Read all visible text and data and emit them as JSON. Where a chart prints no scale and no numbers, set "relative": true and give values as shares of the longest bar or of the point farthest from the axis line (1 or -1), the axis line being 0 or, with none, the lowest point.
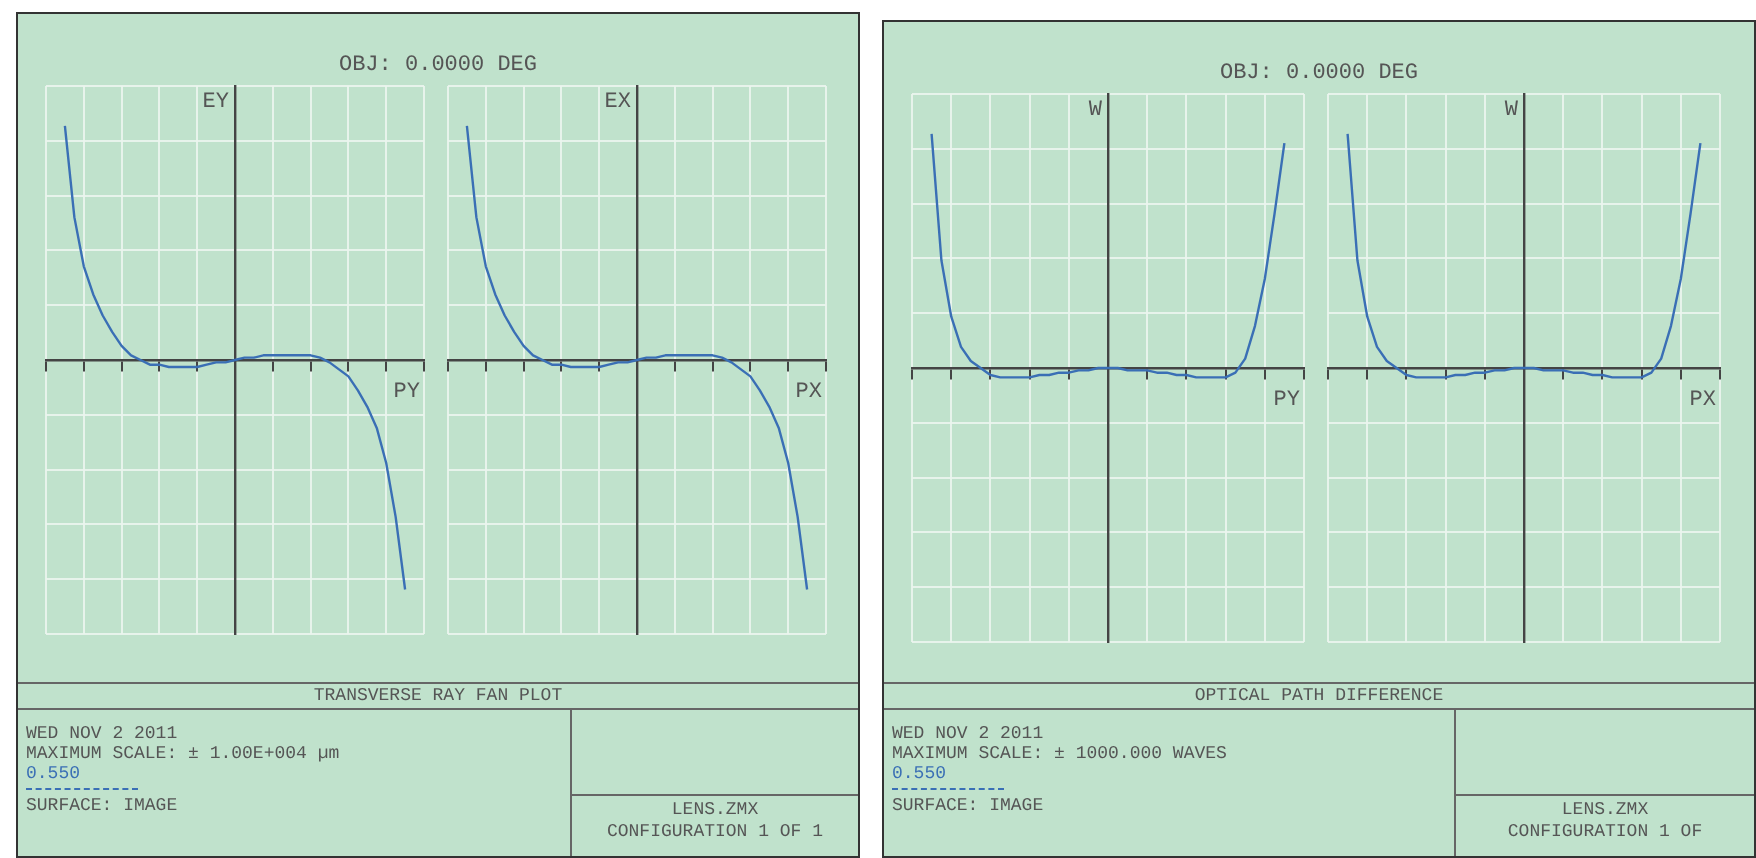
{
  "chart_data": [
    {
      "type": "line",
      "relative": true,
      "title": "OBJ: 0.0000 DEG",
      "ylabel": "EY",
      "xlabel": "PY",
      "grid": true,
      "legend": false,
      "marker": "none",
      "categories": [
        null,
        null,
        null,
        null,
        null,
        null,
        null,
        null,
        null,
        null,
        null,
        null,
        null,
        null,
        null,
        null,
        null,
        null,
        null,
        null,
        null,
        null,
        null,
        null,
        null,
        null,
        null,
        null,
        null,
        null,
        null,
        null,
        null,
        null,
        null,
        null,
        null,
        null,
        null,
        null,
        null
      ],
      "series": [
        {
          "name": "0.550",
          "color": "#3a6fb5",
          "values": [
            null,
            null,
            1,
            0.61,
            0.4,
            0.28,
            0.19,
            0.12,
            0.06,
            0.02,
            0,
            -0.02,
            -0.02,
            -0.03,
            -0.03,
            -0.03,
            -0.03,
            -0.02,
            -0.01,
            -0.01,
            0,
            0.01,
            0.01,
            0.02,
            0.02,
            0.02,
            0.02,
            0.02,
            0.02,
            0.01,
            -0.01,
            -0.04,
            -0.07,
            -0.13,
            -0.2,
            -0.29,
            -0.44,
            -0.67,
            -0.98,
            null,
            null
          ]
        }
      ],
      "annotations": [
        "TRANSVERSE RAY FAN PLOT",
        "WED NOV 2 2011",
        "MAXIMUM SCALE: ± 1.00E+004 µm",
        "SURFACE: IMAGE",
        "LENS.ZMX",
        "CONFIGURATION 1 OF 1"
      ]
    },
    {
      "type": "line",
      "relative": true,
      "ylabel": "EX",
      "xlabel": "PX",
      "grid": true,
      "legend": false,
      "marker": "none",
      "categories": [
        null,
        null,
        null,
        null,
        null,
        null,
        null,
        null,
        null,
        null,
        null,
        null,
        null,
        null,
        null,
        null,
        null,
        null,
        null,
        null,
        null,
        null,
        null,
        null,
        null,
        null,
        null,
        null,
        null,
        null,
        null,
        null,
        null,
        null,
        null,
        null,
        null,
        null,
        null,
        null,
        null
      ],
      "series": [
        {
          "color": "#3a6fb5",
          "values": [
            null,
            null,
            1,
            0.61,
            0.4,
            0.28,
            0.19,
            0.12,
            0.06,
            0.02,
            0,
            -0.02,
            -0.02,
            -0.03,
            -0.03,
            -0.03,
            -0.03,
            -0.02,
            -0.01,
            -0.01,
            0,
            0.01,
            0.01,
            0.02,
            0.02,
            0.02,
            0.02,
            0.02,
            0.02,
            0.01,
            -0.01,
            -0.04,
            -0.07,
            -0.13,
            -0.2,
            -0.29,
            -0.44,
            -0.67,
            -0.98,
            null,
            null
          ]
        }
      ]
    },
    {
      "type": "line",
      "relative": true,
      "title": "OBJ: 0.0000 DEG",
      "ylabel": "W",
      "xlabel": "PY",
      "grid": true,
      "legend": false,
      "marker": "none",
      "categories": [
        null,
        null,
        null,
        null,
        null,
        null,
        null,
        null,
        null,
        null,
        null,
        null,
        null,
        null,
        null,
        null,
        null,
        null,
        null,
        null,
        null,
        null,
        null,
        null,
        null,
        null,
        null,
        null,
        null,
        null,
        null,
        null,
        null,
        null,
        null,
        null,
        null,
        null,
        null,
        null,
        null
      ],
      "series": [
        {
          "name": "0.550",
          "color": "#3a6fb5",
          "values": [
            null,
            null,
            1,
            0.46,
            0.22,
            0.09,
            0.03,
            0,
            -0.03,
            -0.04,
            -0.04,
            -0.04,
            -0.04,
            -0.03,
            -0.03,
            -0.02,
            -0.02,
            -0.01,
            -0.01,
            0,
            0,
            0,
            -0.01,
            -0.01,
            -0.01,
            -0.02,
            -0.02,
            -0.03,
            -0.03,
            -0.04,
            -0.04,
            -0.04,
            -0.04,
            -0.02,
            0.04,
            0.18,
            0.38,
            0.66,
            0.96,
            null,
            null
          ]
        }
      ],
      "annotations": [
        "OPTICAL PATH DIFFERENCE",
        "WED NOV 2 2011",
        "MAXIMUM SCALE: ± 1000.000 WAVES",
        "SURFACE: IMAGE",
        "LENS.ZMX",
        "CONFIGURATION 1 OF"
      ]
    },
    {
      "type": "line",
      "relative": true,
      "ylabel": "W",
      "xlabel": "PX",
      "grid": true,
      "legend": false,
      "marker": "none",
      "categories": [
        null,
        null,
        null,
        null,
        null,
        null,
        null,
        null,
        null,
        null,
        null,
        null,
        null,
        null,
        null,
        null,
        null,
        null,
        null,
        null,
        null,
        null,
        null,
        null,
        null,
        null,
        null,
        null,
        null,
        null,
        null,
        null,
        null,
        null,
        null,
        null,
        null,
        null,
        null,
        null,
        null
      ],
      "series": [
        {
          "color": "#3a6fb5",
          "values": [
            null,
            null,
            1,
            0.46,
            0.22,
            0.09,
            0.03,
            0,
            -0.03,
            -0.04,
            -0.04,
            -0.04,
            -0.04,
            -0.03,
            -0.03,
            -0.02,
            -0.02,
            -0.01,
            -0.01,
            0,
            0,
            0,
            -0.01,
            -0.01,
            -0.01,
            -0.02,
            -0.02,
            -0.03,
            -0.03,
            -0.04,
            -0.04,
            -0.04,
            -0.04,
            -0.02,
            0.04,
            0.18,
            0.38,
            0.66,
            0.96,
            null,
            null
          ]
        }
      ]
    }
  ]
}
